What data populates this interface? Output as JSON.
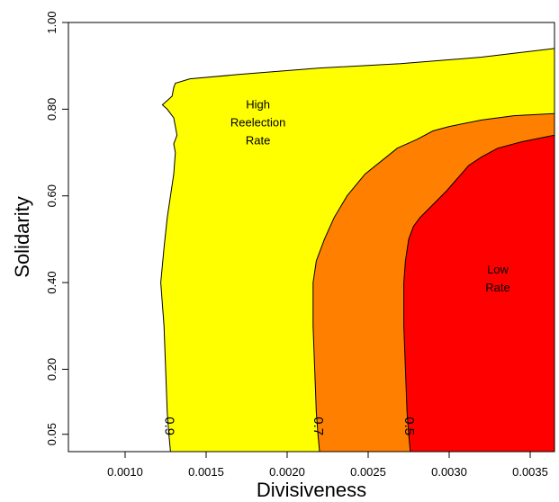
{
  "chart_data": {
    "type": "contour",
    "xlabel": "Divisiveness",
    "ylabel": "Solidarity",
    "xlim": [
      0.00065,
      0.00365
    ],
    "ylim": [
      0.01,
      1.0
    ],
    "x_ticks": [
      {
        "value": 0.001,
        "label": "0.0010"
      },
      {
        "value": 0.0015,
        "label": "0.0015"
      },
      {
        "value": 0.002,
        "label": "0.0020"
      },
      {
        "value": 0.0025,
        "label": "0.0025"
      },
      {
        "value": 0.003,
        "label": "0.0030"
      },
      {
        "value": 0.0035,
        "label": "0.0035"
      }
    ],
    "y_ticks": [
      {
        "value": 0.05,
        "label": "0.05"
      },
      {
        "value": 0.2,
        "label": "0.20"
      },
      {
        "value": 0.4,
        "label": "0.40"
      },
      {
        "value": 0.6,
        "label": "0.60"
      },
      {
        "value": 0.8,
        "label": "0.80"
      },
      {
        "value": 1.0,
        "label": "1.00"
      }
    ],
    "regions": [
      {
        "level": 0.9,
        "label": "0.9",
        "color": "#ffff00",
        "boundary": [
          [
            0.00128,
            0.01
          ],
          [
            0.00127,
            0.05
          ],
          [
            0.00126,
            0.1
          ],
          [
            0.00125,
            0.2
          ],
          [
            0.00124,
            0.3
          ],
          [
            0.00122,
            0.4
          ],
          [
            0.00124,
            0.48
          ],
          [
            0.00126,
            0.55
          ],
          [
            0.00128,
            0.6
          ],
          [
            0.0013,
            0.65
          ],
          [
            0.00131,
            0.7
          ],
          [
            0.0013,
            0.72
          ],
          [
            0.00132,
            0.74
          ],
          [
            0.00131,
            0.76
          ],
          [
            0.0013,
            0.78
          ],
          [
            0.00126,
            0.8
          ],
          [
            0.00123,
            0.81
          ],
          [
            0.00126,
            0.82
          ],
          [
            0.00129,
            0.83
          ],
          [
            0.0013,
            0.85
          ],
          [
            0.00131,
            0.86
          ],
          [
            0.0014,
            0.87
          ],
          [
            0.0017,
            0.88
          ],
          [
            0.0022,
            0.895
          ],
          [
            0.0027,
            0.905
          ],
          [
            0.0032,
            0.92
          ],
          [
            0.00365,
            0.94
          ]
        ]
      },
      {
        "level": 0.7,
        "label": "0.7",
        "color": "#ff8000",
        "boundary": [
          [
            0.0022,
            0.01
          ],
          [
            0.00219,
            0.05
          ],
          [
            0.00218,
            0.1
          ],
          [
            0.00217,
            0.2
          ],
          [
            0.00216,
            0.3
          ],
          [
            0.00216,
            0.4
          ],
          [
            0.00218,
            0.45
          ],
          [
            0.00223,
            0.5
          ],
          [
            0.00229,
            0.55
          ],
          [
            0.00237,
            0.6
          ],
          [
            0.00248,
            0.65
          ],
          [
            0.00258,
            0.68
          ],
          [
            0.00268,
            0.71
          ],
          [
            0.0028,
            0.73
          ],
          [
            0.0029,
            0.75
          ],
          [
            0.003,
            0.76
          ],
          [
            0.0032,
            0.775
          ],
          [
            0.0034,
            0.785
          ],
          [
            0.00365,
            0.79
          ]
        ]
      },
      {
        "level": 0.5,
        "label": "0.5",
        "color": "#ff0000",
        "boundary": [
          [
            0.00276,
            0.01
          ],
          [
            0.00275,
            0.05
          ],
          [
            0.00274,
            0.1
          ],
          [
            0.00273,
            0.2
          ],
          [
            0.00272,
            0.3
          ],
          [
            0.00272,
            0.4
          ],
          [
            0.00273,
            0.45
          ],
          [
            0.00275,
            0.5
          ],
          [
            0.00278,
            0.53
          ],
          [
            0.00282,
            0.55
          ],
          [
            0.0029,
            0.58
          ],
          [
            0.00298,
            0.61
          ],
          [
            0.00305,
            0.64
          ],
          [
            0.00312,
            0.67
          ],
          [
            0.0032,
            0.69
          ],
          [
            0.0033,
            0.71
          ],
          [
            0.00345,
            0.725
          ],
          [
            0.00365,
            0.74
          ]
        ]
      }
    ],
    "annotations": [
      {
        "lines": [
          "High",
          "Reelection",
          "Rate"
        ],
        "x": 0.00182,
        "y": 0.76
      },
      {
        "lines": [
          "Low",
          "Rate"
        ],
        "x": 0.0033,
        "y": 0.4
      }
    ]
  }
}
